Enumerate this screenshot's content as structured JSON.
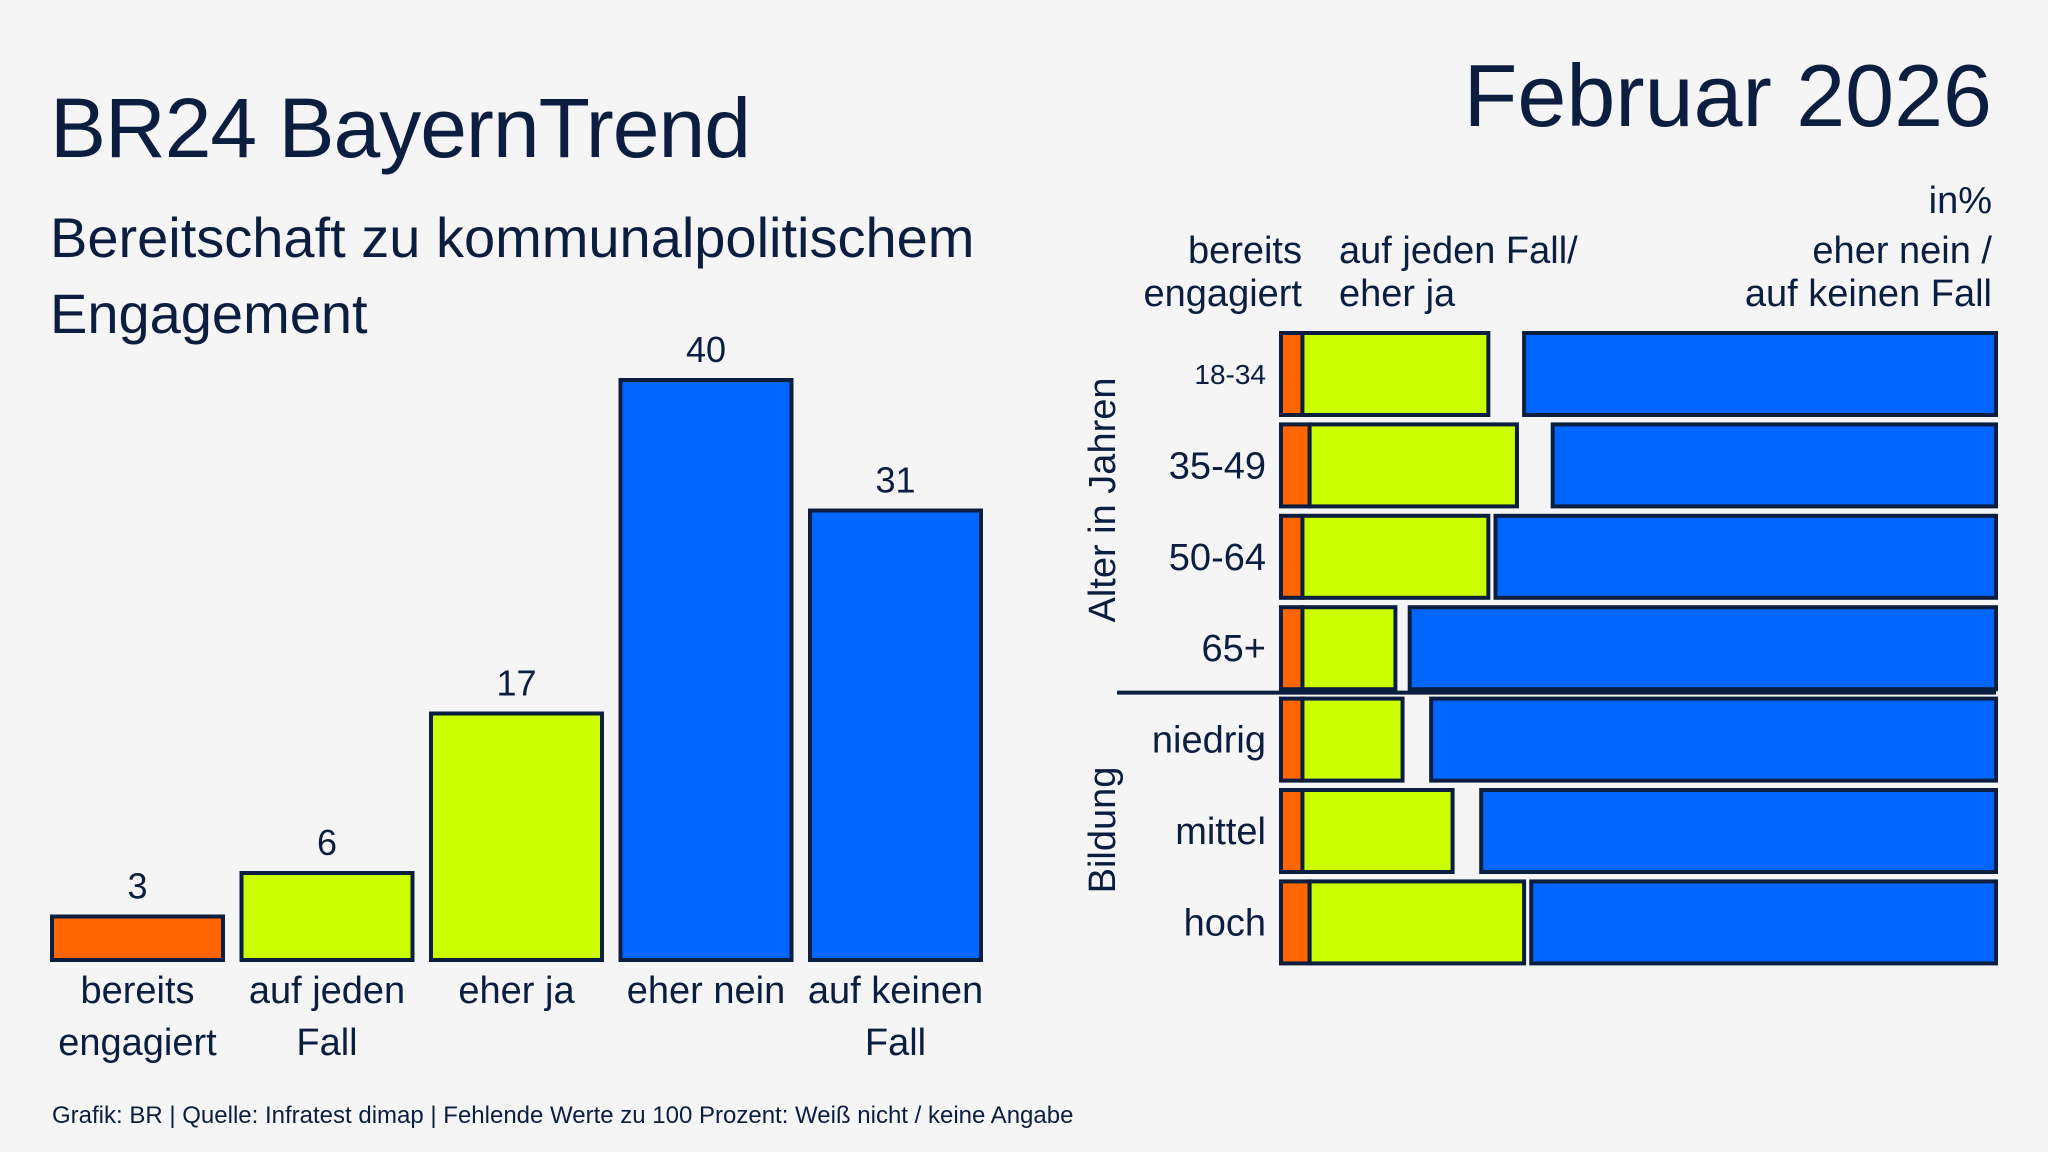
{
  "header": {
    "title": "BR24 BayernTrend",
    "date": "Februar 2026",
    "subtitle_line1": "Bereitschaft zu kommunalpolitischem",
    "subtitle_line2": "Engagement"
  },
  "footer": "Grafik: BR | Quelle: Infratest dimap | Fehlende Werte zu 100 Prozent: Weiß nicht / keine Angabe",
  "colors": {
    "orange": "#ff6600",
    "lime": "#ccff00",
    "blue": "#0066ff",
    "outline": "#0b1e3f",
    "text": "#0b1e3f",
    "background": "#f5f5f5"
  },
  "chart_data": [
    {
      "type": "bar",
      "categories": [
        [
          "bereits",
          "engagiert"
        ],
        [
          "auf jeden",
          "Fall"
        ],
        [
          "eher ja"
        ],
        [
          "eher nein"
        ],
        [
          "auf keinen",
          "Fall"
        ]
      ],
      "values": [
        3,
        6,
        17,
        40,
        31
      ],
      "bar_colors": [
        "#ff6600",
        "#ccff00",
        "#ccff00",
        "#0066ff",
        "#0066ff"
      ],
      "data_labels": true,
      "grid": false
    },
    {
      "type": "bar",
      "orientation": "horizontal-stacked",
      "unit_label": "in%",
      "column_headers": {
        "engaged": [
          "bereits",
          "engagiert"
        ],
        "yes": [
          "auf jeden Fall/",
          "eher ja"
        ],
        "no": [
          "eher nein /",
          "auf keinen Fall"
        ]
      },
      "groups": [
        {
          "label": "Alter in Jahren",
          "rows": [
            {
              "category": "18-34",
              "engaged": 3,
              "yes": 26,
              "no": 66
            },
            {
              "category": "35-49",
              "engaged": 4,
              "yes": 29,
              "no": 62
            },
            {
              "category": "50-64",
              "engaged": 3,
              "yes": 26,
              "no": 70
            },
            {
              "category": "65+",
              "engaged": 3,
              "yes": 13,
              "no": 82
            }
          ]
        },
        {
          "label": "Bildung",
          "rows": [
            {
              "category": "niedrig",
              "engaged": 3,
              "yes": 14,
              "no": 79
            },
            {
              "category": "mittel",
              "engaged": 3,
              "yes": 21,
              "no": 72
            },
            {
              "category": "hoch",
              "engaged": 4,
              "yes": 30,
              "no": 65
            }
          ]
        }
      ],
      "xlim": [
        0,
        100
      ],
      "grid": false
    }
  ]
}
